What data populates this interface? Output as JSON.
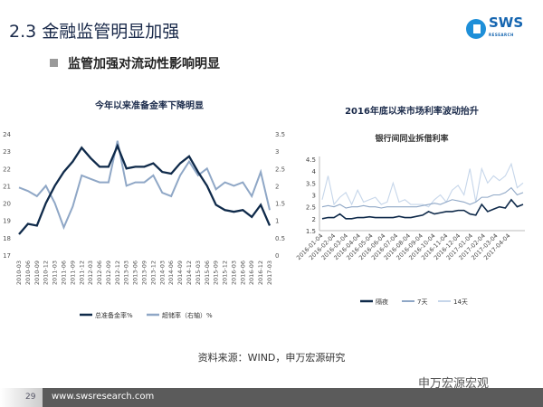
{
  "header": {
    "title": "2.3 金融监管明显加强",
    "bullet": "监管加强对流动性影响明显",
    "logo_text": "SWS",
    "logo_sub": "RESEARCH"
  },
  "footer": {
    "source": "资料来源：WIND，申万宏源研究",
    "page": "29",
    "url": "www.swsresearch.com",
    "wechat": "申万宏源宏观"
  },
  "colors": {
    "dark": "#0f2a4a",
    "light": "#8fa7c6",
    "lighter": "#c6d6ea"
  },
  "chart_data": [
    {
      "type": "line",
      "title": "今年以来准备金率下降明显",
      "categories": [
        "2010-03",
        "2010-06",
        "2010-09",
        "2010-12",
        "2011-03",
        "2011-06",
        "2011-09",
        "2011-12",
        "2012-03",
        "2012-06",
        "2012-09",
        "2012-12",
        "2013-03",
        "2013-06",
        "2013-09",
        "2013-12",
        "2014-03",
        "2014-06",
        "2014-09",
        "2014-12",
        "2015-03",
        "2015-06",
        "2015-09",
        "2015-12",
        "2016-03",
        "2016-06",
        "2016-09",
        "2016-12",
        "2017-03"
      ],
      "left_ticks": [
        "17",
        "18",
        "19",
        "20",
        "21",
        "22",
        "23",
        "24"
      ],
      "ylim": [
        17,
        24
      ],
      "right_ticks": [
        "0",
        "0.5",
        "1",
        "1.5",
        "2",
        "2.5",
        "3",
        "3.5"
      ],
      "y2lim": [
        0,
        3.5
      ],
      "series": [
        {
          "name": "总准备金率%",
          "axis": "left",
          "values": [
            18.2,
            18.8,
            18.7,
            20.0,
            21.0,
            21.8,
            22.4,
            23.2,
            22.6,
            22.1,
            22.1,
            23.3,
            22.0,
            22.1,
            22.1,
            22.3,
            21.8,
            21.7,
            22.3,
            22.7,
            21.8,
            21.0,
            19.9,
            19.6,
            19.5,
            19.6,
            19.2,
            19.9,
            18.7
          ]
        },
        {
          "name": "超储率（右轴）%",
          "axis": "right",
          "values": [
            1.95,
            1.85,
            1.7,
            2.0,
            1.5,
            0.8,
            1.4,
            2.3,
            2.2,
            2.1,
            2.1,
            3.3,
            2.0,
            2.1,
            2.1,
            2.3,
            1.8,
            1.7,
            2.3,
            2.7,
            2.3,
            2.5,
            1.9,
            2.1,
            2.0,
            2.1,
            1.7,
            2.4,
            1.3
          ]
        }
      ]
    },
    {
      "type": "line",
      "title": "2016年底以来市场利率波动抬升",
      "subtitle": "银行间同业拆借利率",
      "x_ticks": [
        "2016-01-04",
        "2016-02-04",
        "2016-03-04",
        "2016-04-04",
        "2016-05-04",
        "2016-06-04",
        "2016-07-04",
        "2016-08-04",
        "2016-09-04",
        "2016-10-04",
        "2016-11-04",
        "2016-12-04",
        "2017-01-04",
        "2017-02-04",
        "2017-03-04",
        "2017-04-04"
      ],
      "y_ticks": [
        "1.5",
        "2",
        "2.5",
        "3",
        "3.5",
        "4",
        "4.5"
      ],
      "ylim": [
        1.5,
        4.5
      ],
      "series": [
        {
          "name": "隔夜",
          "values": [
            2.0,
            2.05,
            2.05,
            2.2,
            2.0,
            2.0,
            2.05,
            2.05,
            2.08,
            2.05,
            2.05,
            2.05,
            2.05,
            2.1,
            2.05,
            2.05,
            2.1,
            2.15,
            2.3,
            2.2,
            2.25,
            2.3,
            2.3,
            2.35,
            2.35,
            2.2,
            2.15,
            2.6,
            2.3,
            2.4,
            2.5,
            2.45,
            2.8,
            2.5,
            2.6
          ]
        },
        {
          "name": "7天",
          "values": [
            2.5,
            2.55,
            2.5,
            2.6,
            2.45,
            2.5,
            2.5,
            2.55,
            2.5,
            2.5,
            2.45,
            2.5,
            2.5,
            2.5,
            2.5,
            2.5,
            2.5,
            2.55,
            2.6,
            2.65,
            2.6,
            2.7,
            2.8,
            2.75,
            2.7,
            2.6,
            2.7,
            2.9,
            2.9,
            3.0,
            3.0,
            3.1,
            3.3,
            3.0,
            3.1
          ]
        },
        {
          "name": "14天",
          "values": [
            2.8,
            3.8,
            2.6,
            2.9,
            3.1,
            2.6,
            3.2,
            2.7,
            2.8,
            2.9,
            2.6,
            2.7,
            3.5,
            2.7,
            2.8,
            2.6,
            2.6,
            2.6,
            2.5,
            2.8,
            3.0,
            2.7,
            3.2,
            3.4,
            3.0,
            4.1,
            2.7,
            4.1,
            3.5,
            3.8,
            3.6,
            3.8,
            4.3,
            3.3,
            3.5
          ]
        }
      ]
    }
  ]
}
